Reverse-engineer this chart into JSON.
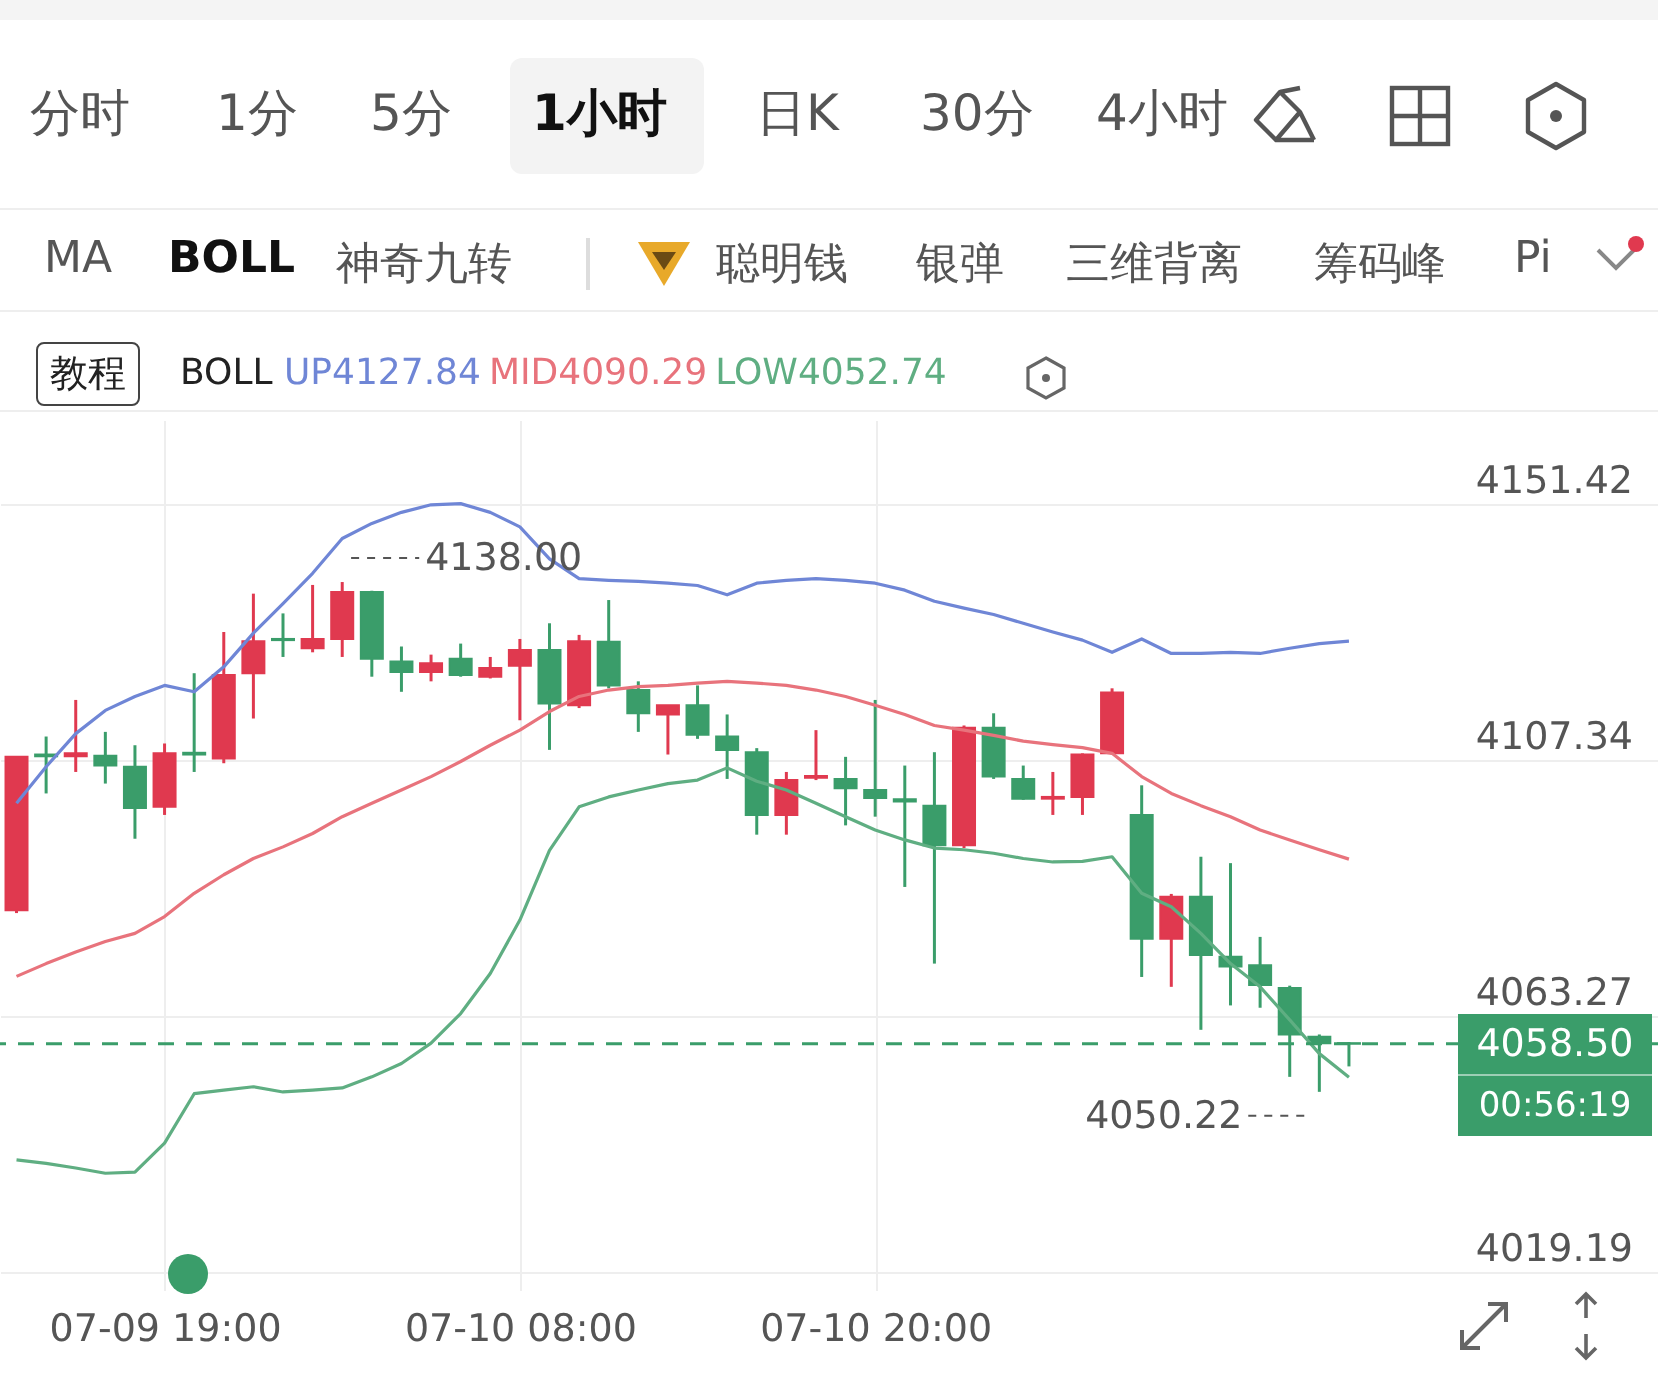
{
  "chart_data": {
    "type": "candlestick",
    "categories": [
      null,
      null,
      null,
      null,
      null,
      "07-09 19:00",
      null,
      null,
      null,
      null,
      null,
      null,
      null,
      null,
      null,
      null,
      null,
      "07-10 08:00",
      null,
      null,
      null,
      null,
      null,
      null,
      null,
      null,
      null,
      null,
      null,
      "07-10 20:00",
      null,
      null,
      null,
      null,
      null,
      null,
      null,
      null,
      null,
      null,
      null,
      null,
      null,
      null,
      null,
      null
    ],
    "ohlc": [
      [
        4081.5,
        4108.0,
        4081.0,
        4107.9
      ],
      [
        4108.3,
        4111.4,
        4101.6,
        4108.0
      ],
      [
        4108.0,
        4117.7,
        4105.3,
        4108.5
      ],
      [
        4108.1,
        4112.2,
        4103.3,
        4106.4
      ],
      [
        4106.2,
        4109.9,
        4093.8,
        4099.1
      ],
      [
        4099.3,
        4110.2,
        4097.9,
        4108.5
      ],
      [
        4108.6,
        4122.3,
        4105.3,
        4108.3
      ],
      [
        4107.6,
        4129.4,
        4106.8,
        4122.0
      ],
      [
        4122.3,
        4136.0,
        4114.5,
        4127.8
      ],
      [
        4128.2,
        4132.6,
        4125.1,
        4128.0
      ],
      [
        4126.6,
        4137.5,
        4125.9,
        4128.2
      ],
      [
        4128.2,
        4138.0,
        4125.1,
        4136.3
      ],
      [
        4136.3,
        4136.5,
        4121.7,
        4124.8
      ],
      [
        4124.3,
        4126.9,
        4119.1,
        4122.5
      ],
      [
        4122.5,
        4125.5,
        4120.9,
        4124.0
      ],
      [
        4124.8,
        4127.4,
        4121.7,
        4122.0
      ],
      [
        4121.7,
        4125.1,
        4121.4,
        4123.2
      ],
      [
        4123.6,
        4128.2,
        4114.2,
        4126.3
      ],
      [
        4126.3,
        4130.9,
        4109.1,
        4117.1
      ],
      [
        4116.8,
        4128.9,
        4116.3,
        4127.8
      ],
      [
        4127.7,
        4134.9,
        4119.7,
        4120.2
      ],
      [
        4119.4,
        4120.9,
        4112.2,
        4115.4
      ],
      [
        4115.2,
        4116.8,
        4108.3,
        4116.8
      ],
      [
        4116.8,
        4120.2,
        4111.0,
        4111.7
      ],
      [
        4111.4,
        4115.2,
        4104.1,
        4109.1
      ],
      [
        4108.7,
        4109.4,
        4094.5,
        4097.9
      ],
      [
        4097.9,
        4105.3,
        4094.5,
        4103.9
      ],
      [
        4104.3,
        4112.5,
        4103.9,
        4104.6
      ],
      [
        4104.1,
        4107.9,
        4096.1,
        4102.5
      ],
      [
        4102.2,
        4117.7,
        4097.6,
        4100.8
      ],
      [
        4100.6,
        4106.4,
        4085.5,
        4100.2
      ],
      [
        4099.5,
        4108.7,
        4072.3,
        4092.7
      ],
      [
        4092.7,
        4113.3,
        4092.2,
        4112.9
      ],
      [
        4112.9,
        4115.4,
        4104.1,
        4104.5
      ],
      [
        4104.1,
        4106.4,
        4100.5,
        4100.7
      ],
      [
        4100.7,
        4105.3,
        4097.9,
        4101.0
      ],
      [
        4101.0,
        4108.5,
        4097.9,
        4108.3
      ],
      [
        4108.5,
        4119.7,
        4108.3,
        4119.0
      ],
      [
        4097.9,
        4103.0,
        4070.0,
        4076.6
      ],
      [
        4076.6,
        4084.3,
        4068.3,
        4083.8
      ],
      [
        4083.8,
        4090.7,
        4060.9,
        4073.8
      ],
      [
        4073.5,
        4089.6,
        4065.1,
        4071.8
      ],
      [
        4072.0,
        4076.9,
        4064.7,
        4068.6
      ],
      [
        4068.1,
        4068.5,
        4052.8,
        4060.1
      ],
      [
        4059.7,
        4060.1,
        4050.22,
        4058.6
      ],
      [
        4058.6,
        4058.8,
        4054.6,
        4058.5
      ]
    ],
    "colors": [
      "#e0394f",
      "#3a9d6a",
      "#e0394f",
      "#3a9d6a",
      "#3a9d6a",
      "#e0394f",
      "#3a9d6a",
      "#e0394f",
      "#e0394f",
      "#3a9d6a",
      "#e0394f",
      "#e0394f",
      "#3a9d6a",
      "#3a9d6a",
      "#e0394f",
      "#3a9d6a",
      "#e0394f",
      "#e0394f",
      "#3a9d6a",
      "#e0394f",
      "#3a9d6a",
      "#3a9d6a",
      "#e0394f",
      "#3a9d6a",
      "#3a9d6a",
      "#3a9d6a",
      "#e0394f",
      "#e0394f",
      "#3a9d6a",
      "#3a9d6a",
      "#3a9d6a",
      "#3a9d6a",
      "#e0394f",
      "#3a9d6a",
      "#3a9d6a",
      "#e0394f",
      "#e0394f",
      "#e0394f",
      "#3a9d6a",
      "#e0394f",
      "#3a9d6a",
      "#3a9d6a",
      "#3a9d6a",
      "#3a9d6a",
      "#3a9d6a",
      "#3a9d6a"
    ],
    "legend_title": "BOLL",
    "series": [
      {
        "type": "line",
        "name": "UP4127.84",
        "color": "#6f86d6",
        "values": [
          4099.9,
          4106.2,
          4111.9,
          4115.9,
          4118.3,
          4120.2,
          4119.1,
          4123.4,
          4129.2,
          4134.3,
          4139.5,
          4145.5,
          4148.1,
          4150.0,
          4151.3,
          4151.5,
          4150.0,
          4147.5,
          4142.0,
          4138.6,
          4138.3,
          4138.1,
          4137.8,
          4137.4,
          4135.8,
          4137.8,
          4138.3,
          4138.6,
          4138.3,
          4137.8,
          4136.6,
          4134.7,
          4133.5,
          4132.4,
          4130.9,
          4129.4,
          4128.0,
          4125.9,
          4128.2,
          4125.7,
          4125.7,
          4125.9,
          4125.7,
          4126.6,
          4127.4,
          4127.84
        ]
      },
      {
        "type": "line",
        "name": "MID4090.29",
        "color": "#e8737c",
        "values": [
          4070.1,
          4072.3,
          4074.3,
          4076.1,
          4077.5,
          4080.4,
          4084.4,
          4087.6,
          4090.4,
          4092.4,
          4094.7,
          4097.6,
          4099.9,
          4102.2,
          4104.5,
          4107.1,
          4109.9,
          4112.5,
          4115.7,
          4118.3,
          4119.4,
          4120.0,
          4120.2,
          4120.6,
          4120.9,
          4120.6,
          4120.2,
          4119.4,
          4118.3,
          4116.8,
          4115.2,
          4113.3,
          4112.5,
          4111.6,
          4110.6,
          4110.0,
          4109.5,
          4108.5,
          4104.5,
          4101.6,
          4099.5,
          4097.6,
          4095.3,
          4093.6,
          4091.9,
          4090.29
        ]
      },
      {
        "type": "line",
        "name": "LOW4052.74",
        "color": "#5fae82",
        "values": [
          4038.5,
          4037.9,
          4037.1,
          4036.2,
          4036.4,
          4041.4,
          4049.9,
          4050.5,
          4051.1,
          4050.2,
          4050.5,
          4050.9,
          4052.8,
          4055.1,
          4058.6,
          4063.7,
          4070.6,
          4079.8,
          4091.8,
          4099.3,
          4101.0,
          4102.2,
          4103.3,
          4103.9,
          4106.0,
          4103.7,
          4102.2,
          4099.9,
          4097.6,
          4095.3,
          4093.6,
          4092.2,
          4091.9,
          4091.3,
          4090.4,
          4089.8,
          4089.9,
          4090.7,
          4084.4,
          4082.1,
          4077.5,
          4072.3,
          4068.3,
          4062.6,
          4056.8,
          4052.74
        ]
      }
    ],
    "ylim": [
      4016.1,
      4165.9
    ],
    "yticks": [
      4019.19,
      4063.27,
      4107.34,
      4151.42
    ],
    "grid": true,
    "legend": "top",
    "ref_lines": [
      {
        "axis": "y",
        "value": 4058.5,
        "label": "4058.50",
        "color": "#3a9d6a",
        "line_style": "dashed"
      }
    ],
    "annotations": [
      "分时",
      "1分",
      "5分",
      "1小时",
      "日K",
      "30分",
      "4小时",
      "MA",
      "BOLL",
      "神奇九转",
      "聪明钱",
      "银弹",
      "三维背离",
      "筹码峰",
      "Pi",
      "教程",
      "00:56:19",
      "4138.00",
      "4050.22"
    ]
  }
}
